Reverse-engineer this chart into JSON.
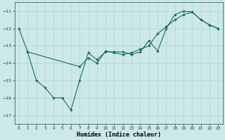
{
  "xlabel": "Humidex (Indice chaleur)",
  "xlim": [
    -0.5,
    23.5
  ],
  "ylim": [
    -17.5,
    -10.5
  ],
  "yticks": [
    -17,
    -16,
    -15,
    -14,
    -13,
    -12,
    -11
  ],
  "xticks": [
    0,
    1,
    2,
    3,
    4,
    5,
    6,
    7,
    8,
    9,
    10,
    11,
    12,
    13,
    14,
    15,
    16,
    17,
    18,
    19,
    20,
    21,
    22,
    23
  ],
  "line_color": "#1a6b5a",
  "bg_color": "#cce8e8",
  "grid_color": "#afd4d4",
  "series1_x": [
    0,
    1,
    2,
    3,
    4,
    5,
    6,
    7,
    8,
    9,
    10,
    11,
    12,
    13,
    14,
    15,
    16,
    17,
    18,
    19,
    20,
    21,
    22,
    23
  ],
  "series1_y": [
    -12.0,
    -13.35,
    -15.0,
    -15.4,
    -16.0,
    -16.0,
    -16.7,
    -15.0,
    -13.4,
    -13.8,
    -13.35,
    -13.35,
    -13.35,
    -13.5,
    -13.35,
    -12.7,
    -13.3,
    -12.0,
    -11.2,
    -11.0,
    -11.05,
    -11.5,
    -11.8,
    -12.0
  ],
  "series2_x": [
    1,
    7,
    8,
    9,
    10,
    11,
    12,
    13,
    14,
    15,
    16,
    17,
    18,
    19,
    20,
    21,
    22,
    23
  ],
  "series2_y": [
    -13.35,
    -14.2,
    -13.7,
    -14.0,
    -13.3,
    -13.4,
    -13.5,
    -13.4,
    -13.2,
    -13.0,
    -12.3,
    -11.9,
    -11.5,
    -11.2,
    -11.05,
    -11.5,
    -11.8,
    -12.0
  ]
}
